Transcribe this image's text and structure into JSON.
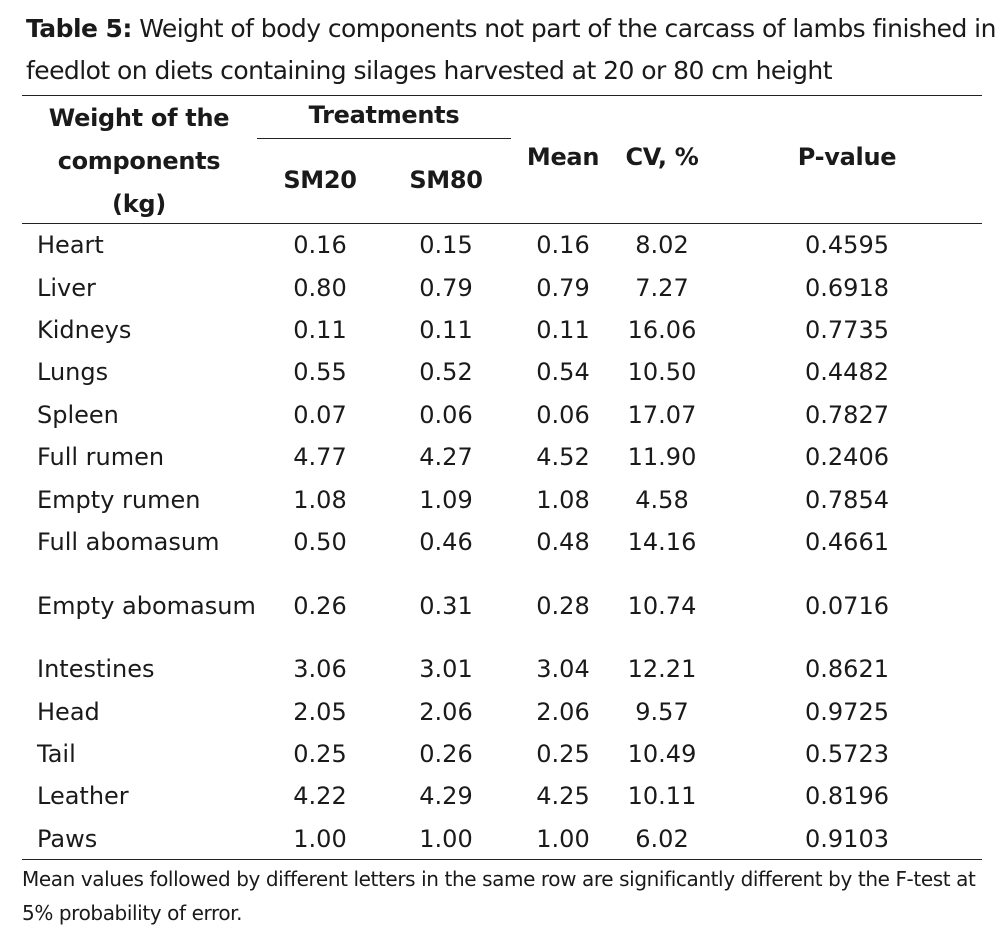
{
  "caption": {
    "label": "Table 5:",
    "text": " Weight of body components not part of the carcass of lambs finished in feedlot on diets containing silages harvested at 20 or 80 cm height"
  },
  "headers": {
    "weight": "Weight of the components (kg)",
    "treatments": "Treatments",
    "sm20": "SM20",
    "sm80": "SM80",
    "mean": "Mean",
    "cv": "CV, %",
    "pvalue": "P-value"
  },
  "rows": [
    {
      "name": "Heart",
      "sm20": "0.16",
      "sm80": "0.15",
      "mean": "0.16",
      "cv": "8.02",
      "p": "0.4595"
    },
    {
      "name": "Liver",
      "sm20": "0.80",
      "sm80": "0.79",
      "mean": "0.79",
      "cv": "7.27",
      "p": "0.6918"
    },
    {
      "name": "Kidneys",
      "sm20": "0.11",
      "sm80": "0.11",
      "mean": "0.11",
      "cv": "16.06",
      "p": "0.7735"
    },
    {
      "name": "Lungs",
      "sm20": "0.55",
      "sm80": "0.52",
      "mean": "0.54",
      "cv": "10.50",
      "p": "0.4482"
    },
    {
      "name": "Spleen",
      "sm20": "0.07",
      "sm80": "0.06",
      "mean": "0.06",
      "cv": "17.07",
      "p": "0.7827"
    },
    {
      "name": "Full rumen",
      "sm20": "4.77",
      "sm80": "4.27",
      "mean": "4.52",
      "cv": "11.90",
      "p": "0.2406"
    },
    {
      "name": "Empty rumen",
      "sm20": "1.08",
      "sm80": "1.09",
      "mean": "1.08",
      "cv": "4.58",
      "p": "0.7854"
    },
    {
      "name": "Full abomasum",
      "sm20": "0.50",
      "sm80": "0.46",
      "mean": "0.48",
      "cv": "14.16",
      "p": "0.4661"
    },
    {
      "name": "Empty abomasum",
      "sm20": "0.26",
      "sm80": "0.31",
      "mean": "0.28",
      "cv": "10.74",
      "p": "0.0716"
    },
    {
      "name": "Intestines",
      "sm20": "3.06",
      "sm80": "3.01",
      "mean": "3.04",
      "cv": "12.21",
      "p": "0.8621"
    },
    {
      "name": "Head",
      "sm20": "2.05",
      "sm80": "2.06",
      "mean": "2.06",
      "cv": "9.57",
      "p": "0.9725"
    },
    {
      "name": "Tail",
      "sm20": "0.25",
      "sm80": "0.26",
      "mean": "0.25",
      "cv": "10.49",
      "p": "0.5723"
    },
    {
      "name": "Leather",
      "sm20": "4.22",
      "sm80": "4.29",
      "mean": "4.25",
      "cv": "10.11",
      "p": "0.8196"
    },
    {
      "name": "Paws",
      "sm20": "1.00",
      "sm80": "1.00",
      "mean": "1.00",
      "cv": "6.02",
      "p": "0.9103"
    }
  ],
  "footnote": "Mean values followed by different letters in the same row are significantly different by the F-test at 5% probability of error."
}
